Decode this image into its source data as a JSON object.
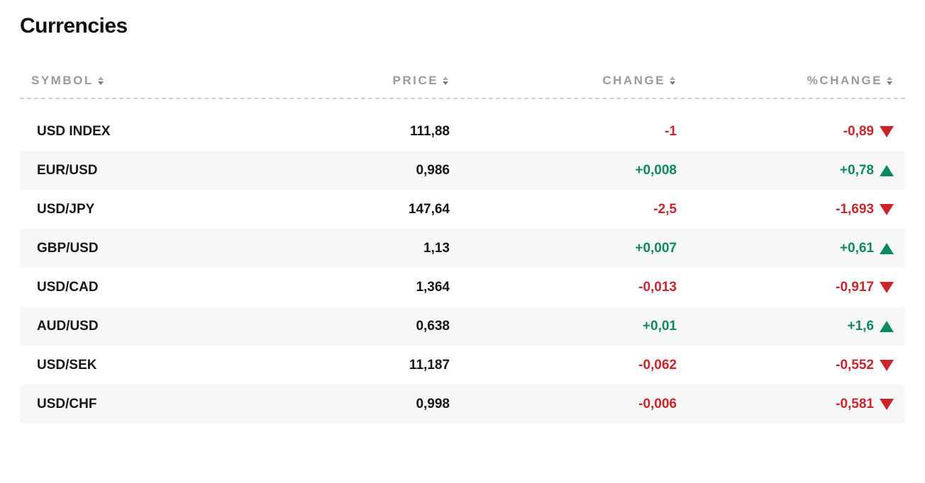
{
  "title": "Currencies",
  "colors": {
    "up": "#0d8a5a",
    "down": "#c9252d",
    "header_text": "#9a9a9a",
    "row_alt_bg": "#f7f7f7",
    "dashed_border": "#d0d0d0",
    "text": "#111111",
    "bg": "#ffffff"
  },
  "columns": [
    {
      "key": "symbol",
      "label": "SYMBOL",
      "sortable": true
    },
    {
      "key": "price",
      "label": "PRICE",
      "sortable": true
    },
    {
      "key": "change",
      "label": "CHANGE",
      "sortable": true
    },
    {
      "key": "pchange",
      "label": "%CHANGE",
      "sortable": true
    }
  ],
  "rows": [
    {
      "symbol": "USD INDEX",
      "price": "111,88",
      "change": "-1",
      "pchange": "-0,89",
      "direction": "down"
    },
    {
      "symbol": "EUR/USD",
      "price": "0,986",
      "change": "+0,008",
      "pchange": "+0,78",
      "direction": "up"
    },
    {
      "symbol": "USD/JPY",
      "price": "147,64",
      "change": "-2,5",
      "pchange": "-1,693",
      "direction": "down"
    },
    {
      "symbol": "GBP/USD",
      "price": "1,13",
      "change": "+0,007",
      "pchange": "+0,61",
      "direction": "up"
    },
    {
      "symbol": "USD/CAD",
      "price": "1,364",
      "change": "-0,013",
      "pchange": "-0,917",
      "direction": "down"
    },
    {
      "symbol": "AUD/USD",
      "price": "0,638",
      "change": "+0,01",
      "pchange": "+1,6",
      "direction": "up"
    },
    {
      "symbol": "USD/SEK",
      "price": "11,187",
      "change": "-0,062",
      "pchange": "-0,552",
      "direction": "down"
    },
    {
      "symbol": "USD/CHF",
      "price": "0,998",
      "change": "-0,006",
      "pchange": "-0,581",
      "direction": "down"
    }
  ]
}
